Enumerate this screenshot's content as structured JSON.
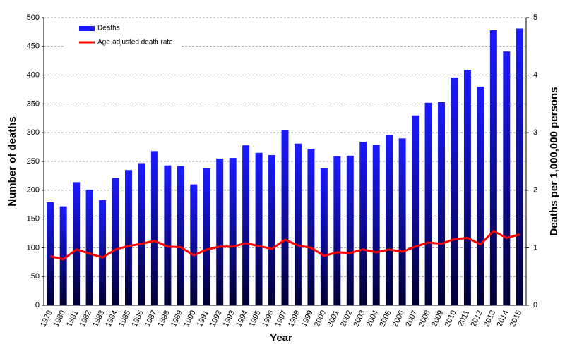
{
  "chart_data": {
    "type": "bar_line",
    "x_label": "Year",
    "y_label": "Number of deaths",
    "y2_label": "Deaths per 1,000,000 persons",
    "categories": [
      "1979",
      "1980",
      "1981",
      "1982",
      "1983",
      "1984",
      "1985",
      "1986",
      "1987",
      "1988",
      "1989",
      "1990",
      "1991",
      "1992",
      "1993",
      "1994",
      "1995",
      "1996",
      "1997",
      "1998",
      "1999",
      "2000",
      "2001",
      "2002",
      "2003",
      "2004",
      "2005",
      "2006",
      "2007",
      "2008",
      "2009",
      "2010",
      "2011",
      "2012",
      "2013",
      "2014",
      "2015"
    ],
    "series": [
      {
        "name": "Deaths",
        "type": "bar",
        "color": "#1a1aff",
        "values": [
          179,
          172,
          214,
          201,
          183,
          221,
          235,
          247,
          268,
          243,
          242,
          210,
          238,
          255,
          256,
          278,
          265,
          261,
          305,
          281,
          272,
          238,
          259,
          260,
          284,
          279,
          296,
          290,
          330,
          352,
          353,
          396,
          409,
          380,
          478,
          441,
          481
        ]
      },
      {
        "name": "Age-adjusted death rate",
        "type": "line",
        "axis": "y2",
        "color": "#ff0000",
        "values": [
          0.85,
          0.8,
          0.97,
          0.9,
          0.83,
          0.97,
          1.03,
          1.07,
          1.12,
          1.02,
          1.01,
          0.87,
          0.97,
          1.02,
          1.02,
          1.08,
          1.03,
          0.98,
          1.14,
          1.04,
          1.0,
          0.86,
          0.92,
          0.91,
          0.97,
          0.92,
          0.97,
          0.93,
          1.02,
          1.09,
          1.07,
          1.15,
          1.17,
          1.06,
          1.29,
          1.17,
          1.23
        ]
      }
    ],
    "ylim": [
      0,
      500
    ],
    "yticks": [
      0,
      50,
      100,
      150,
      200,
      250,
      300,
      350,
      400,
      450,
      500
    ],
    "y2lim": [
      0,
      5
    ],
    "y2ticks": [
      0,
      1,
      2,
      3,
      4,
      5
    ],
    "grid": true
  }
}
